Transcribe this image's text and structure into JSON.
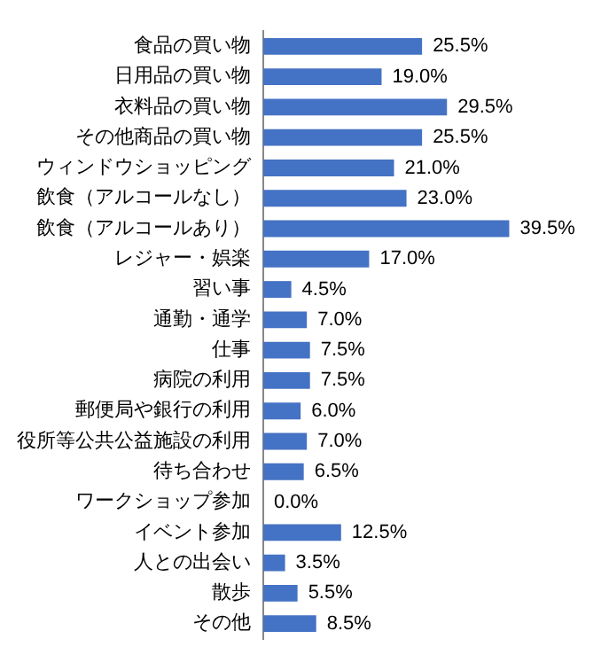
{
  "chart_data": {
    "type": "bar",
    "orientation": "horizontal",
    "categories": [
      "食品の買い物",
      "日用品の買い物",
      "衣料品の買い物",
      "その他商品の買い物",
      "ウィンドウショッピング",
      "飲食（アルコールなし）",
      "飲食（アルコールあり）",
      "レジャー・娯楽",
      "習い事",
      "通勤・通学",
      "仕事",
      "病院の利用",
      "郵便局や銀行の利用",
      "役所等公共公益施設の利用",
      "待ち合わせ",
      "ワークショップ参加",
      "イベント参加",
      "人との出会い",
      "散歩",
      "その他"
    ],
    "values": [
      25.5,
      19.0,
      29.5,
      25.5,
      21.0,
      23.0,
      39.5,
      17.0,
      4.5,
      7.0,
      7.5,
      7.5,
      6.0,
      7.0,
      6.5,
      0.0,
      12.5,
      3.5,
      5.5,
      8.5
    ],
    "value_labels": [
      "25.5%",
      "19.0%",
      "29.5%",
      "25.5%",
      "21.0%",
      "23.0%",
      "39.5%",
      "17.0%",
      "4.5%",
      "7.0%",
      "7.5%",
      "7.5%",
      "6.0%",
      "7.0%",
      "6.5%",
      "0.0%",
      "12.5%",
      "3.5%",
      "5.5%",
      "8.5%"
    ],
    "color": "#4472c4",
    "legend": false,
    "tick_labels": "y"
  }
}
